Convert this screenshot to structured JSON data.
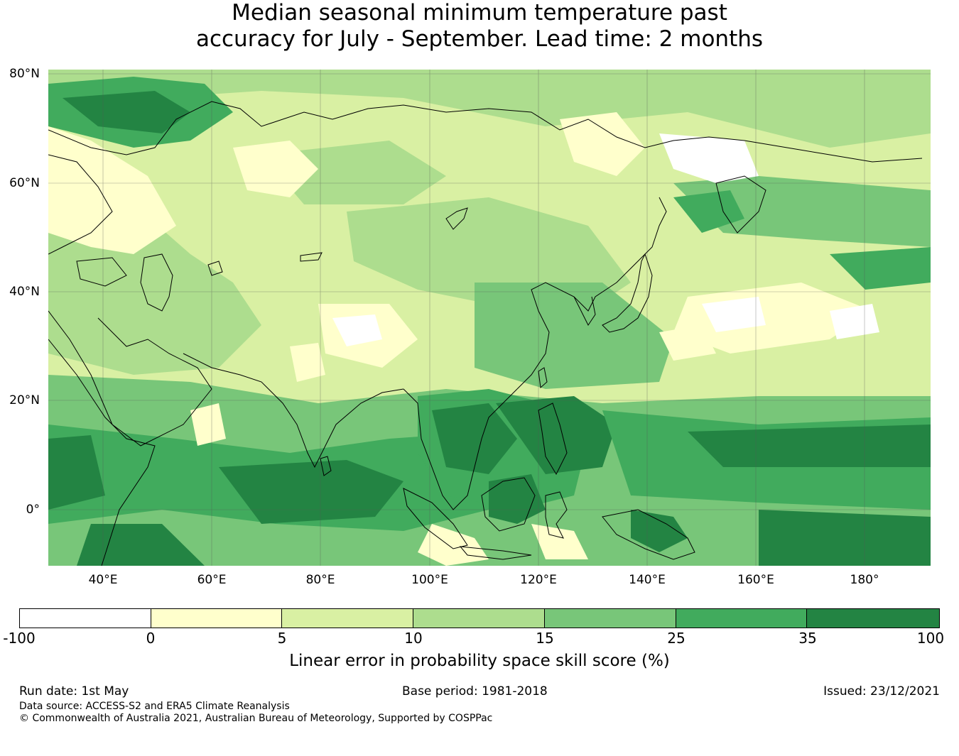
{
  "title": {
    "line1": "Median seasonal minimum temperature past",
    "line2": "accuracy for July - September. Lead time: 2 months"
  },
  "map": {
    "lat_labels": [
      "80°N",
      "60°N",
      "40°N",
      "20°N",
      "0°"
    ],
    "lon_labels": [
      "40°E",
      "60°E",
      "80°E",
      "100°E",
      "120°E",
      "140°E",
      "160°E",
      "180°"
    ],
    "region": "Asia and western Pacific",
    "extent": {
      "lon_min": 30,
      "lon_max": 192,
      "lat_min": -10,
      "lat_max": 81
    },
    "gridlines": true,
    "coastlines": true
  },
  "colorbar": {
    "ticks": [
      "-100",
      "0",
      "5",
      "10",
      "15",
      "25",
      "35",
      "100"
    ],
    "colors": [
      "#ffffff",
      "#ffffcc",
      "#d9f0a3",
      "#addd8e",
      "#78c679",
      "#41ab5d",
      "#238443"
    ],
    "label": "Linear error in probability space skill score (%)"
  },
  "footer": {
    "run_date": "Run date: 1st May",
    "base_period": "Base period: 1981-2018",
    "issued": "Issued: 23/12/2021",
    "data_source": "Data source: ACCESS-S2 and ERA5 Climate Reanalysis",
    "copyright": "© Commonwealth of Australia 2021, Australian Bureau of Meteorology, Supported by COSPPac"
  }
}
